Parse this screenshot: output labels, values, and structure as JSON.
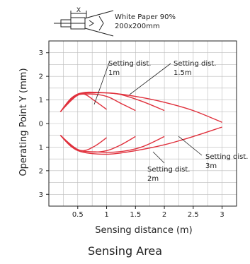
{
  "chart_data": {
    "type": "line",
    "title": "Sensing Area",
    "xlabel": "Sensing distance (m)",
    "ylabel": "Operating Point Y (mm)",
    "xlim": [
      0,
      3.25
    ],
    "ylim": [
      -3.5,
      3.5
    ],
    "x_ticks": [
      0.5,
      1,
      1.5,
      2,
      2.5,
      3
    ],
    "x_tick_labels": [
      "0.5",
      "1",
      "1.5",
      "2",
      "2.5",
      "3"
    ],
    "y_ticks": [
      3,
      2,
      1,
      0,
      -1,
      -2,
      -3
    ],
    "y_tick_labels": [
      "3",
      "2",
      "1",
      "0",
      "1",
      "2",
      "3"
    ],
    "grid": true,
    "target_label": [
      "White Paper 90%",
      "200x200mm"
    ],
    "sensor_label": "X",
    "series": [
      {
        "name": "Setting dist. 1m",
        "x": [
          0.2,
          0.4,
          0.6,
          0.8,
          1.0
        ],
        "upper": [
          0.5,
          1.1,
          1.25,
          0.95,
          0.6
        ],
        "lower": [
          -0.5,
          -1.0,
          -1.15,
          -0.95,
          -0.6
        ]
      },
      {
        "name": "Setting dist. 1.5m",
        "x": [
          0.2,
          0.45,
          0.7,
          1.0,
          1.25,
          1.5
        ],
        "upper": [
          0.5,
          1.15,
          1.25,
          1.15,
          0.85,
          0.55
        ],
        "lower": [
          -0.5,
          -1.05,
          -1.2,
          -1.15,
          -0.9,
          -0.55
        ]
      },
      {
        "name": "Setting dist. 2m",
        "x": [
          0.2,
          0.5,
          0.8,
          1.2,
          1.6,
          2.0
        ],
        "upper": [
          0.5,
          1.2,
          1.3,
          1.25,
          0.95,
          0.55
        ],
        "lower": [
          -0.5,
          -1.1,
          -1.2,
          -1.2,
          -1.0,
          -0.55
        ]
      },
      {
        "name": "Setting dist. 3m",
        "x": [
          0.2,
          0.5,
          1.0,
          1.5,
          2.0,
          2.5,
          3.0
        ],
        "upper": [
          0.5,
          1.25,
          1.3,
          1.15,
          0.9,
          0.55,
          0.05
        ],
        "lower": [
          -0.5,
          -1.15,
          -1.3,
          -1.15,
          -0.9,
          -0.55,
          -0.15
        ]
      }
    ],
    "annotations": [
      {
        "lines": [
          "Setting dist.",
          "1m"
        ]
      },
      {
        "lines": [
          "Setting dist.",
          "1.5m"
        ]
      },
      {
        "lines": [
          "Setting dist.",
          "2m"
        ]
      },
      {
        "lines": [
          "Setting dist.",
          "3m"
        ]
      }
    ],
    "colors": {
      "curve": "#e0303c",
      "grid": "#bbbbbb",
      "axis": "#222222",
      "text": "#222222"
    }
  }
}
